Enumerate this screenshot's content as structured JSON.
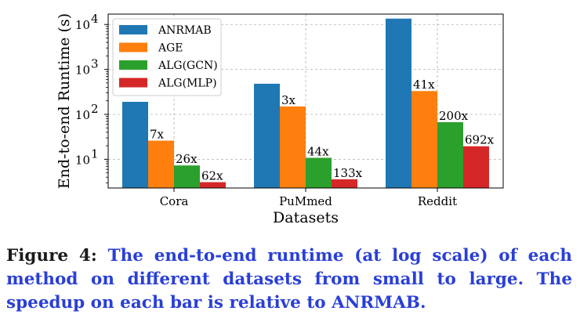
{
  "chart_data": {
    "type": "bar",
    "log_scale_y": true,
    "grid": true,
    "legend_position": "top-left",
    "categories": [
      "Cora",
      "PuMmed",
      "Reddit"
    ],
    "xlabel": "Datasets",
    "ylabel": "End-to-end Runtime (s)",
    "ylim": [
      2.3,
      17000
    ],
    "yticks": [
      {
        "value": 10,
        "base": "10",
        "exp": "1"
      },
      {
        "value": 100,
        "base": "10",
        "exp": "2"
      },
      {
        "value": 1000,
        "base": "10",
        "exp": "3"
      },
      {
        "value": 10000,
        "base": "10",
        "exp": "4"
      }
    ],
    "series": [
      {
        "name": "ANRMAB",
        "color": "#1f77b4",
        "values": [
          190,
          480,
          13500
        ],
        "labels": [
          "",
          "",
          ""
        ]
      },
      {
        "name": "AGE",
        "color": "#ff7f0e",
        "values": [
          26,
          150,
          330
        ],
        "labels": [
          "7x",
          "3x",
          "41x"
        ]
      },
      {
        "name": "ALG(GCN)",
        "color": "#2ca02c",
        "values": [
          7.3,
          10.8,
          67
        ],
        "labels": [
          "26x",
          "44x",
          "200x"
        ]
      },
      {
        "name": "ALG(MLP)",
        "color": "#d62728",
        "values": [
          3.1,
          3.6,
          19.5
        ],
        "labels": [
          "62x",
          "133x",
          "692x"
        ]
      }
    ]
  },
  "caption": {
    "label": "Figure 4:",
    "text": "The end-to-end runtime (at log scale) of each method on different datasets from small to large. The speedup on each bar is relative to ANRMAB."
  }
}
